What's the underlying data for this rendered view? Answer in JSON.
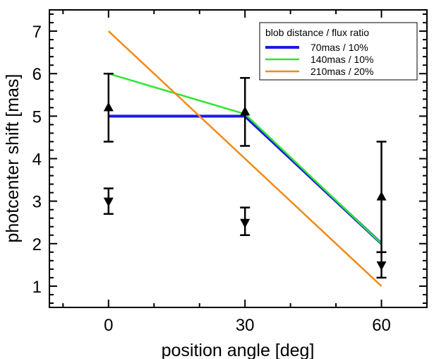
{
  "chart_data": {
    "type": "line",
    "xlabel": "position angle [deg]",
    "ylabel": "photcenter shift [mas]",
    "xlim": [
      -13,
      70
    ],
    "ylim": [
      0.5,
      7.5
    ],
    "x_ticks": [
      0,
      30,
      60
    ],
    "y_ticks": [
      1,
      2,
      3,
      4,
      5,
      6,
      7
    ],
    "legend": {
      "title": "blob distance / flux ratio",
      "placement": "top-right"
    },
    "series": [
      {
        "name": "70mas / 10%",
        "color": "#1a1ae6",
        "x": [
          0,
          30,
          60
        ],
        "values": [
          5.0,
          5.0,
          2.0
        ]
      },
      {
        "name": "140mas / 10%",
        "color": "#2ee62e",
        "x": [
          0,
          30,
          60
        ],
        "values": [
          6.0,
          5.05,
          2.0
        ]
      },
      {
        "name": "210mas / 20%",
        "color": "#f28a1a",
        "x": [
          0,
          60
        ],
        "values": [
          7.0,
          1.0
        ]
      }
    ],
    "measurements": [
      {
        "marker": "triangle-up",
        "x": [
          0,
          30,
          60
        ],
        "values": [
          5.2,
          5.1,
          3.1
        ],
        "err_low": [
          4.4,
          4.3,
          1.8
        ],
        "err_high": [
          6.0,
          5.9,
          4.4
        ]
      },
      {
        "marker": "triangle-down",
        "x": [
          0,
          30,
          60
        ],
        "values": [
          3.0,
          2.5,
          1.5
        ],
        "err_low": [
          2.7,
          2.2,
          1.2
        ],
        "err_high": [
          3.3,
          2.85,
          1.8
        ]
      }
    ]
  }
}
